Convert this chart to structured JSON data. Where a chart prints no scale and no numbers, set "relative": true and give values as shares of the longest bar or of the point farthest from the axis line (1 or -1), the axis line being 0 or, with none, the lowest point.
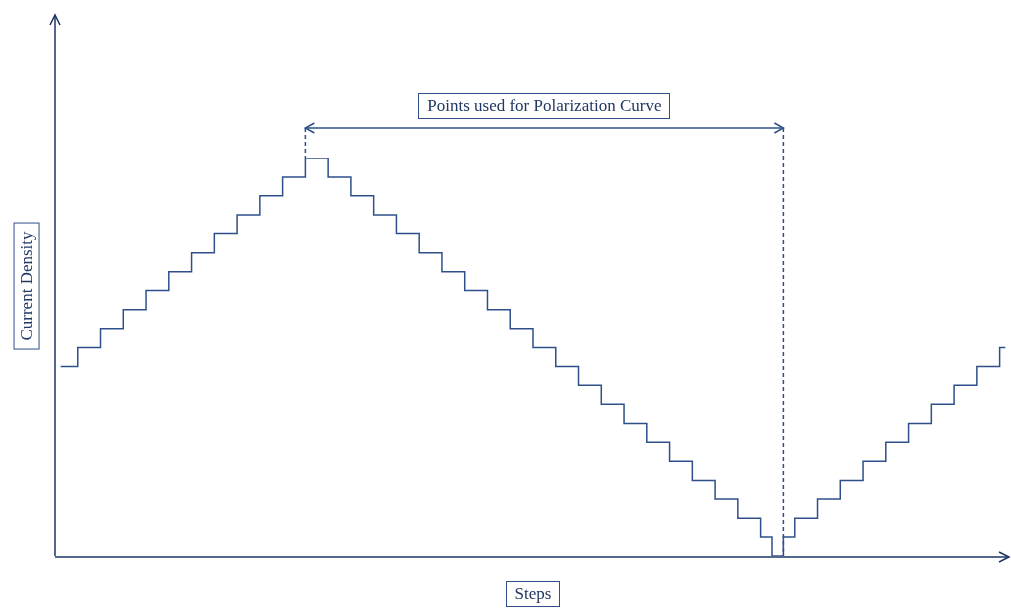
{
  "chart_data": {
    "type": "step",
    "xlabel": "Steps",
    "ylabel": "Current Density",
    "relative": true,
    "marker": "none",
    "color": "#2e4f8a",
    "annotations": [
      "Points used for Polarization Curve"
    ],
    "categories": [
      null,
      null,
      null,
      null,
      null,
      null,
      null,
      null,
      null,
      null,
      null,
      null,
      null,
      null,
      null,
      null,
      null,
      null,
      null,
      null,
      null,
      null,
      null,
      null,
      null,
      null,
      null,
      null,
      null,
      null,
      null,
      null,
      null,
      null,
      null,
      null,
      null,
      null,
      null,
      null,
      null,
      null,
      null,
      null,
      null,
      null,
      null,
      null,
      null,
      null,
      null,
      null,
      null,
      null,
      null,
      null,
      null,
      null,
      null,
      null,
      null,
      null,
      null,
      null,
      null,
      null,
      null,
      null,
      null,
      null,
      null,
      null,
      null,
      null,
      null,
      null,
      null,
      null,
      null,
      null,
      null,
      null,
      null,
      null
    ],
    "values": [
      0.476,
      0.476,
      0.524,
      0.524,
      0.571,
      0.571,
      0.619,
      0.619,
      0.667,
      0.667,
      0.714,
      0.714,
      0.762,
      0.762,
      0.81,
      0.81,
      0.857,
      0.857,
      0.905,
      0.905,
      0.952,
      0.952,
      1,
      1,
      0.952,
      0.952,
      0.905,
      0.905,
      0.857,
      0.857,
      0.81,
      0.81,
      0.762,
      0.762,
      0.714,
      0.714,
      0.667,
      0.667,
      0.619,
      0.619,
      0.571,
      0.571,
      0.524,
      0.524,
      0.476,
      0.476,
      0.429,
      0.429,
      0.381,
      0.381,
      0.333,
      0.333,
      0.286,
      0.286,
      0.238,
      0.238,
      0.19,
      0.19,
      0.143,
      0.143,
      0.095,
      0.095,
      0.048,
      0,
      0.048,
      0.095,
      0.095,
      0.143,
      0.143,
      0.19,
      0.19,
      0.238,
      0.238,
      0.286,
      0.286,
      0.333,
      0.333,
      0.381,
      0.381,
      0.429,
      0.429,
      0.476,
      0.476,
      0.524
    ]
  }
}
